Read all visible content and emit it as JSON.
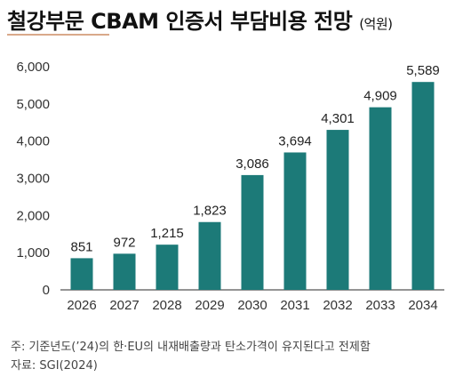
{
  "title": {
    "main": "철강부문 CBAM 인증서 부담비용 전망",
    "unit": "(억원)"
  },
  "notes": {
    "basis": "주: 기준년도(’24)의 한·EU의 내재배출량과 탄소가격이 유지된다고 전제함",
    "source": "자료: SGI(2024)"
  },
  "colors": {
    "bar": "#1c7a78",
    "axis": "#555555"
  },
  "chart_data": {
    "type": "bar",
    "categories": [
      "2026",
      "2027",
      "2028",
      "2029",
      "2030",
      "2031",
      "2032",
      "2033",
      "2034"
    ],
    "values": [
      851,
      972,
      1215,
      1823,
      3086,
      3694,
      4301,
      4909,
      5589
    ],
    "data_labels": [
      "851",
      "972",
      "1,215",
      "1,823",
      "3,086",
      "3,694",
      "4,301",
      "4,909",
      "5,589"
    ],
    "yticks": [
      "0",
      "1,000",
      "2,000",
      "3,000",
      "4,000",
      "5,000",
      "6,000"
    ],
    "ylim": [
      0,
      6000
    ],
    "grid": false,
    "legend": "none"
  }
}
